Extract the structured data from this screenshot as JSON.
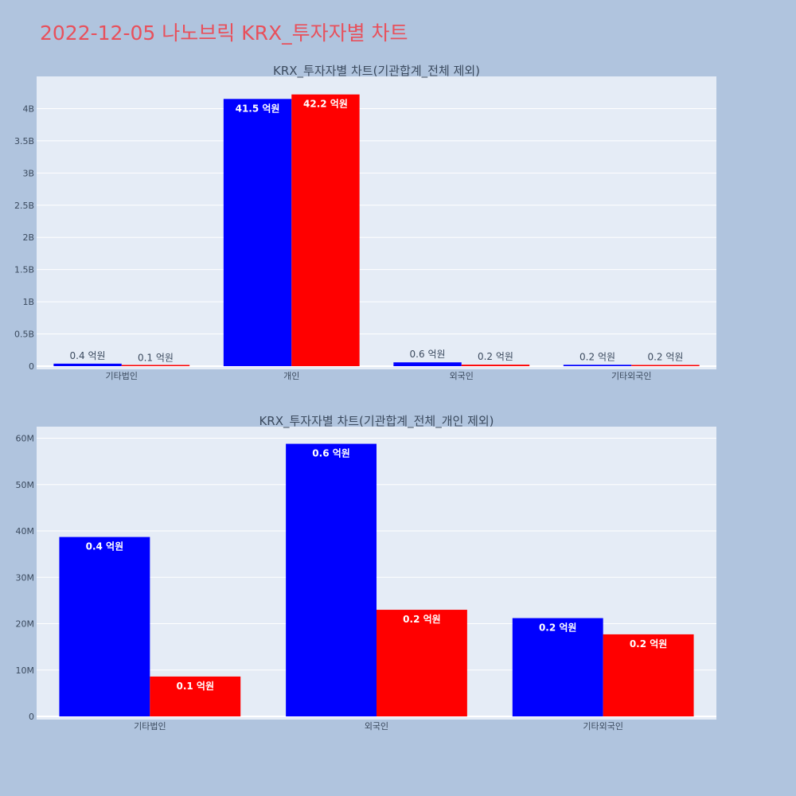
{
  "title": "2022-12-05 나노브릭 KRX_투자자별 차트",
  "colors": {
    "page_bg": "#b0c4de",
    "plot_bg": "#e5ecf6",
    "series_buy": "#0000ff",
    "series_sell": "#ff0000",
    "title": "#e8505b"
  },
  "chart_data": [
    {
      "type": "bar",
      "title": "KRX_투자자별 차트(기관합계_전체 제외)",
      "categories": [
        "기타법인",
        "개인",
        "외국인",
        "기타외국인"
      ],
      "ylim": [
        0,
        4.5
      ],
      "yticks": [
        0,
        0.5,
        1,
        1.5,
        2,
        2.5,
        3,
        3.5,
        4
      ],
      "ytick_labels": [
        "0",
        "0.5B",
        "1B",
        "1.5B",
        "2B",
        "2.5B",
        "3B",
        "3.5B",
        "4B"
      ],
      "grid": true,
      "series": [
        {
          "color": "#0000ff",
          "values": [
            0.039,
            4.15,
            0.059,
            0.021
          ],
          "labels": [
            "0.4 억원",
            "41.5 억원",
            "0.6 억원",
            "0.2 억원"
          ]
        },
        {
          "color": "#ff0000",
          "values": [
            0.009,
            4.22,
            0.023,
            0.018
          ],
          "labels": [
            "0.1 억원",
            "42.2 억원",
            "0.2 억원",
            "0.2 억원"
          ]
        }
      ]
    },
    {
      "type": "bar",
      "title": "KRX_투자자별 차트(기관합계_전체_개인 제외)",
      "categories": [
        "기타법인",
        "외국인",
        "기타외국인"
      ],
      "ylim": [
        0,
        62.5
      ],
      "yticks": [
        0,
        10,
        20,
        30,
        40,
        50,
        60
      ],
      "ytick_labels": [
        "0",
        "10M",
        "20M",
        "30M",
        "40M",
        "50M",
        "60M"
      ],
      "grid": true,
      "series": [
        {
          "color": "#0000ff",
          "values": [
            38.7,
            58.8,
            21.2
          ],
          "labels": [
            "0.4 억원",
            "0.6 억원",
            "0.2 억원"
          ]
        },
        {
          "color": "#ff0000",
          "values": [
            8.6,
            23.0,
            17.7
          ],
          "labels": [
            "0.1 억원",
            "0.2 억원",
            "0.2 억원"
          ]
        }
      ]
    }
  ]
}
